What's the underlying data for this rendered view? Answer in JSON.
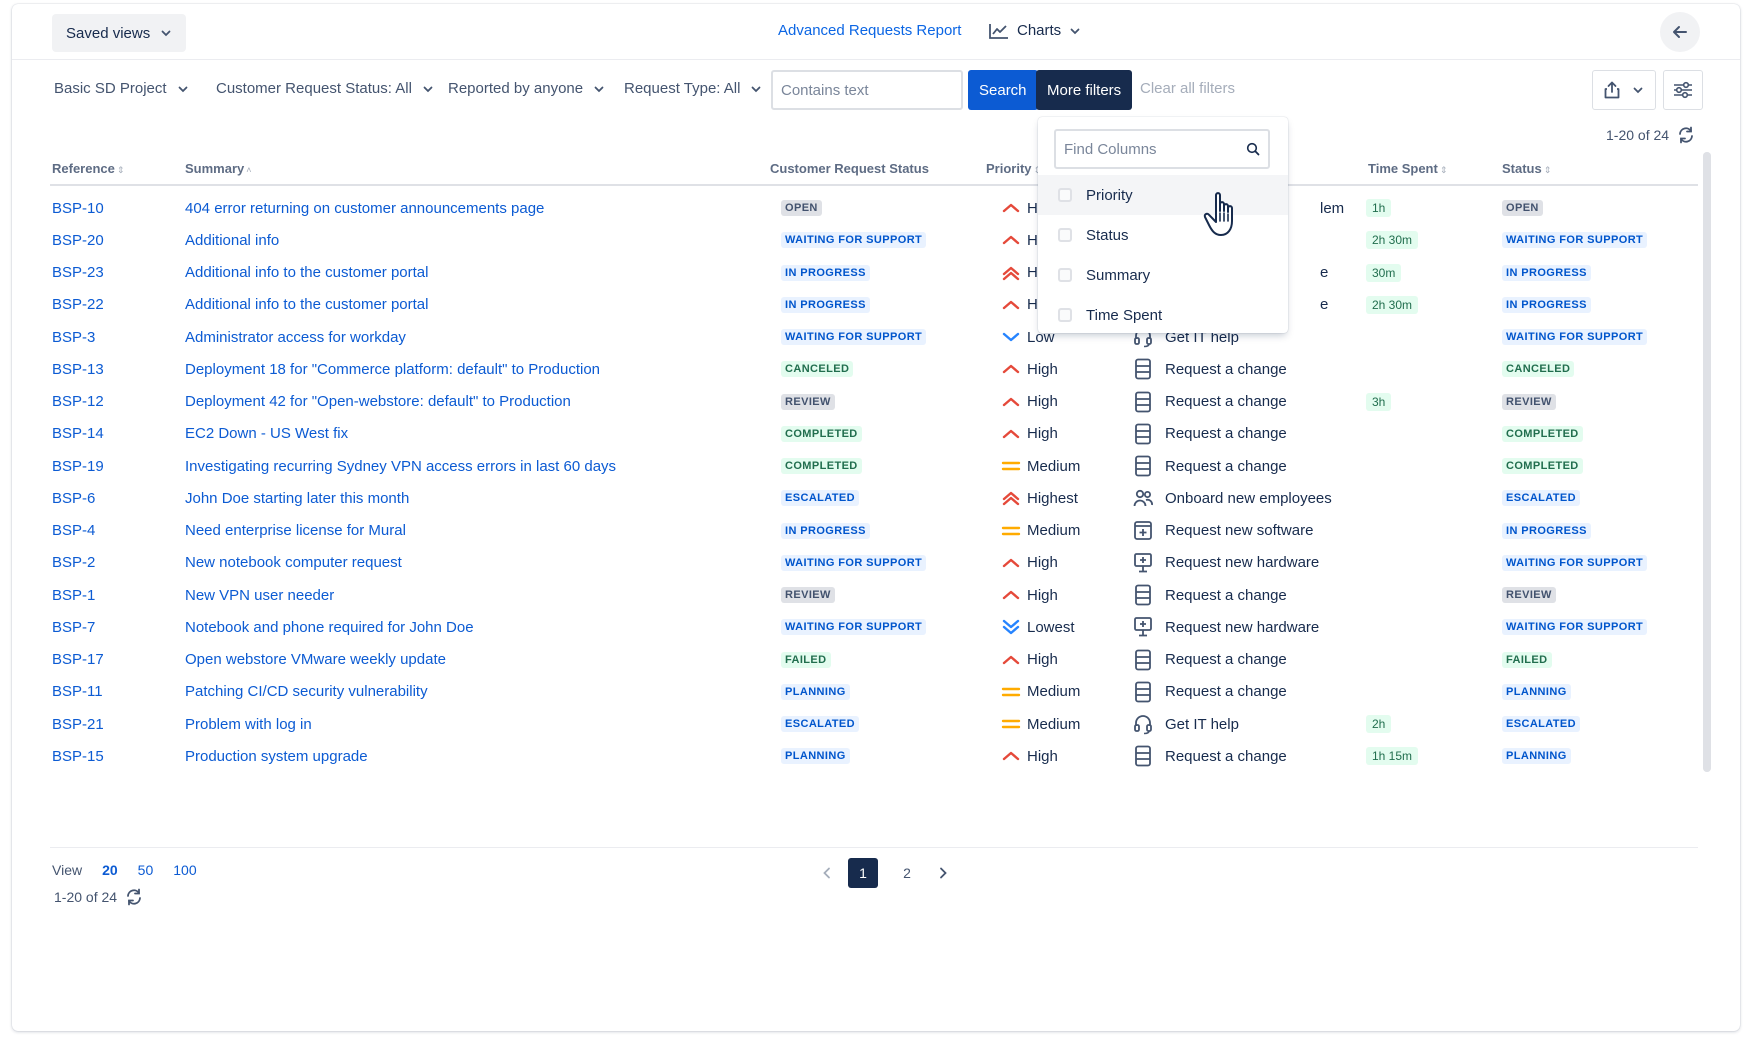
{
  "topbar": {
    "saved_views": "Saved views",
    "report_title": "Advanced Requests Report",
    "charts_label": "Charts"
  },
  "filters": {
    "project": "Basic SD Project",
    "status": "Customer Request Status: All",
    "reporter": "Reported by anyone",
    "request_type": "Request Type: All",
    "text_placeholder": "Contains text",
    "text_value": "",
    "search_label": "Search",
    "more_filters_label": "More filters",
    "clear_all_label": "Clear all filters"
  },
  "pagination_summary": "1-20 of 24",
  "columns": {
    "reference": "Reference",
    "summary": "Summary",
    "customer_status": "Customer Request Status",
    "priority": "Priority",
    "time_spent": "Time Spent",
    "status": "Status"
  },
  "column_picker": {
    "search_placeholder": "Find Columns",
    "items": [
      {
        "label": "Priority",
        "checked": false
      },
      {
        "label": "Status",
        "checked": false
      },
      {
        "label": "Summary",
        "checked": false
      },
      {
        "label": "Time Spent",
        "checked": false
      }
    ]
  },
  "rows": [
    {
      "ref": "BSP-10",
      "summary": "404 error returning on customer announcements page",
      "crs": "OPEN",
      "crs_kind": "open",
      "priority": "High",
      "pri_icon": "high",
      "rtype": "",
      "rtype_icon": "",
      "rtype_partial": "lem",
      "time": "1h",
      "status": "OPEN",
      "status_kind": "open"
    },
    {
      "ref": "BSP-20",
      "summary": "Additional info",
      "crs": "WAITING FOR SUPPORT",
      "crs_kind": "progress",
      "priority": "High",
      "pri_icon": "high",
      "rtype": "",
      "rtype_icon": "",
      "rtype_partial": "",
      "time": "2h 30m",
      "status": "WAITING FOR SUPPORT",
      "status_kind": "progress"
    },
    {
      "ref": "BSP-23",
      "summary": "Additional info to the customer portal",
      "crs": "IN PROGRESS",
      "crs_kind": "progress",
      "priority": "High",
      "pri_icon": "highest",
      "rtype": "",
      "rtype_icon": "",
      "rtype_partial": "e",
      "time": "30m",
      "status": "IN PROGRESS",
      "status_kind": "progress"
    },
    {
      "ref": "BSP-22",
      "summary": "Additional info to the customer portal",
      "crs": "IN PROGRESS",
      "crs_kind": "progress",
      "priority": "High",
      "pri_icon": "high",
      "rtype": "",
      "rtype_icon": "",
      "rtype_partial": "e",
      "time": "2h 30m",
      "status": "IN PROGRESS",
      "status_kind": "progress"
    },
    {
      "ref": "BSP-3",
      "summary": "Administrator access for workday",
      "crs": "WAITING FOR SUPPORT",
      "crs_kind": "progress",
      "priority": "Low",
      "pri_icon": "low",
      "rtype": "Get IT help",
      "rtype_icon": "headset",
      "rtype_partial": "",
      "time": "",
      "status": "WAITING FOR SUPPORT",
      "status_kind": "progress"
    },
    {
      "ref": "BSP-13",
      "summary": "Deployment 18 for \"Commerce platform: default\" to Production",
      "crs": "CANCELED",
      "crs_kind": "success",
      "priority": "High",
      "pri_icon": "high",
      "rtype": "Request a change",
      "rtype_icon": "doc",
      "rtype_partial": "",
      "time": "",
      "status": "CANCELED",
      "status_kind": "success"
    },
    {
      "ref": "BSP-12",
      "summary": "Deployment 42 for \"Open-webstore: default\" to Production",
      "crs": "REVIEW",
      "crs_kind": "default",
      "priority": "High",
      "pri_icon": "high",
      "rtype": "Request a change",
      "rtype_icon": "doc",
      "rtype_partial": "",
      "time": "3h",
      "status": "REVIEW",
      "status_kind": "default"
    },
    {
      "ref": "BSP-14",
      "summary": "EC2 Down - US West fix",
      "crs": "COMPLETED",
      "crs_kind": "success",
      "priority": "High",
      "pri_icon": "high",
      "rtype": "Request a change",
      "rtype_icon": "doc",
      "rtype_partial": "",
      "time": "",
      "status": "COMPLETED",
      "status_kind": "success"
    },
    {
      "ref": "BSP-19",
      "summary": "Investigating recurring Sydney VPN access errors in last 60 days",
      "crs": "COMPLETED",
      "crs_kind": "success",
      "priority": "Medium",
      "pri_icon": "medium",
      "rtype": "Request a change",
      "rtype_icon": "doc",
      "rtype_partial": "",
      "time": "",
      "status": "COMPLETED",
      "status_kind": "success"
    },
    {
      "ref": "BSP-6",
      "summary": "John Doe starting later this month",
      "crs": "ESCALATED",
      "crs_kind": "progress",
      "priority": "Highest",
      "pri_icon": "highest",
      "rtype": "Onboard new employees",
      "rtype_icon": "people",
      "rtype_partial": "",
      "time": "",
      "status": "ESCALATED",
      "status_kind": "progress"
    },
    {
      "ref": "BSP-4",
      "summary": "Need enterprise license for Mural",
      "crs": "IN PROGRESS",
      "crs_kind": "progress",
      "priority": "Medium",
      "pri_icon": "medium",
      "rtype": "Request new software",
      "rtype_icon": "software",
      "rtype_partial": "",
      "time": "",
      "status": "IN PROGRESS",
      "status_kind": "progress"
    },
    {
      "ref": "BSP-2",
      "summary": "New notebook computer request",
      "crs": "WAITING FOR SUPPORT",
      "crs_kind": "progress",
      "priority": "High",
      "pri_icon": "high",
      "rtype": "Request new hardware",
      "rtype_icon": "hardware",
      "rtype_partial": "",
      "time": "",
      "status": "WAITING FOR SUPPORT",
      "status_kind": "progress"
    },
    {
      "ref": "BSP-1",
      "summary": "New VPN user needer",
      "crs": "REVIEW",
      "crs_kind": "default",
      "priority": "High",
      "pri_icon": "high",
      "rtype": "Request a change",
      "rtype_icon": "doc",
      "rtype_partial": "",
      "time": "",
      "status": "REVIEW",
      "status_kind": "default"
    },
    {
      "ref": "BSP-7",
      "summary": "Notebook and phone required for John Doe",
      "crs": "WAITING FOR SUPPORT",
      "crs_kind": "progress",
      "priority": "Lowest",
      "pri_icon": "lowest",
      "rtype": "Request new hardware",
      "rtype_icon": "hardware",
      "rtype_partial": "",
      "time": "",
      "status": "WAITING FOR SUPPORT",
      "status_kind": "progress"
    },
    {
      "ref": "BSP-17",
      "summary": "Open webstore VMware weekly update",
      "crs": "FAILED",
      "crs_kind": "success",
      "priority": "High",
      "pri_icon": "high",
      "rtype": "Request a change",
      "rtype_icon": "doc",
      "rtype_partial": "",
      "time": "",
      "status": "FAILED",
      "status_kind": "success"
    },
    {
      "ref": "BSP-11",
      "summary": "Patching CI/CD security vulnerability",
      "crs": "PLANNING",
      "crs_kind": "progress",
      "priority": "Medium",
      "pri_icon": "medium",
      "rtype": "Request a change",
      "rtype_icon": "doc",
      "rtype_partial": "",
      "time": "",
      "status": "PLANNING",
      "status_kind": "progress"
    },
    {
      "ref": "BSP-21",
      "summary": "Problem with log in",
      "crs": "ESCALATED",
      "crs_kind": "progress",
      "priority": "Medium",
      "pri_icon": "medium",
      "rtype": "Get IT help",
      "rtype_icon": "headset",
      "rtype_partial": "",
      "time": "2h",
      "status": "ESCALATED",
      "status_kind": "progress"
    },
    {
      "ref": "BSP-15",
      "summary": "Production system upgrade",
      "crs": "PLANNING",
      "crs_kind": "progress",
      "priority": "High",
      "pri_icon": "high",
      "rtype": "Request a change",
      "rtype_icon": "doc",
      "rtype_partial": "",
      "time": "1h 15m",
      "status": "PLANNING",
      "status_kind": "progress"
    }
  ],
  "footer": {
    "view_label": "View",
    "view_options": [
      "20",
      "50",
      "100"
    ],
    "active_view": "20",
    "pages": [
      "1",
      "2"
    ],
    "active_page": "1"
  },
  "icons": {
    "saved_views_chevron": "chevron-down-icon",
    "charts": "line-chart-icon",
    "back": "arrow-left-icon",
    "export": "share-icon",
    "settings": "sliders-icon",
    "refresh": "refresh-icon",
    "search": "search-icon",
    "cursor": "hand-pointer-icon"
  },
  "colors": {
    "accent": "#0c5bd3",
    "dark_button": "#172b4d",
    "priority_high": "#e5493a",
    "priority_medium": "#ffab00",
    "priority_low": "#2684ff"
  }
}
